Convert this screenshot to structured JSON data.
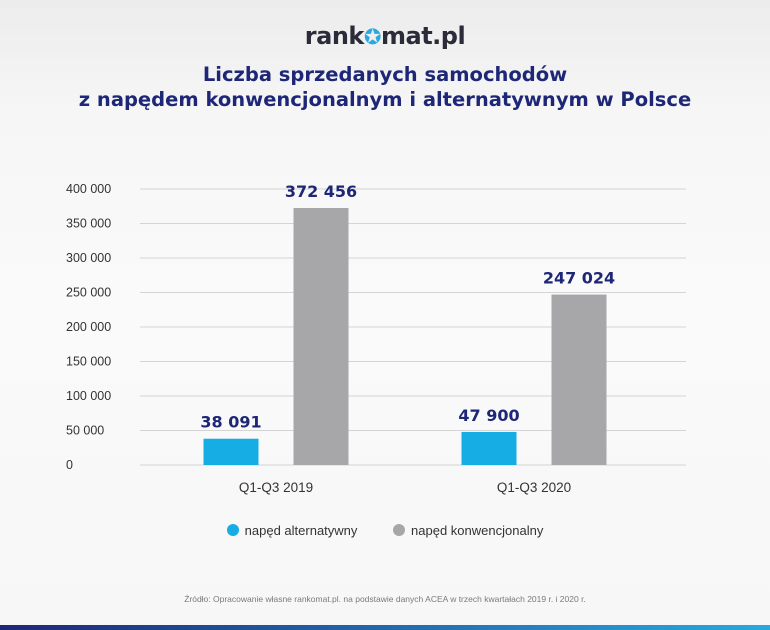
{
  "brand": {
    "name_before": "rank",
    "name_after": "mat.pl",
    "icon": "star-icon"
  },
  "title_line1": "Liczba sprzedanych samochodów",
  "title_line2": "z napędem konwencjonalnym i alternatywnym w Polsce",
  "source": "Źródło: Opracowanie własne rankomat.pl. na podstawie danych ACEA w trzech kwartałach 2019 r. i 2020 r.",
  "colors": {
    "alternative": "#16ade4",
    "conventional": "#a7a7a9",
    "title": "#1e2777"
  },
  "chart_data": {
    "type": "bar",
    "title": "Liczba sprzedanych samochodów z napędem konwencjonalnym i alternatywnym w Polsce",
    "categories": [
      "Q1-Q3 2019",
      "Q1-Q3 2020"
    ],
    "series": [
      {
        "name": "napęd alternatywny",
        "values": [
          38091,
          47900
        ],
        "labels": [
          "38 091",
          "47 900"
        ]
      },
      {
        "name": "napęd konwencjonalny",
        "values": [
          372456,
          247024
        ],
        "labels": [
          "372 456",
          "247 024"
        ]
      }
    ],
    "y_ticks": [
      "0",
      "50 000",
      "100 000",
      "150 000",
      "200 000",
      "250 000",
      "300 000",
      "350 000",
      "400 000"
    ],
    "y_tick_values": [
      0,
      50000,
      100000,
      150000,
      200000,
      250000,
      300000,
      350000,
      400000
    ],
    "ylim": [
      0,
      400000
    ],
    "grid": true,
    "legend": "bottom"
  }
}
